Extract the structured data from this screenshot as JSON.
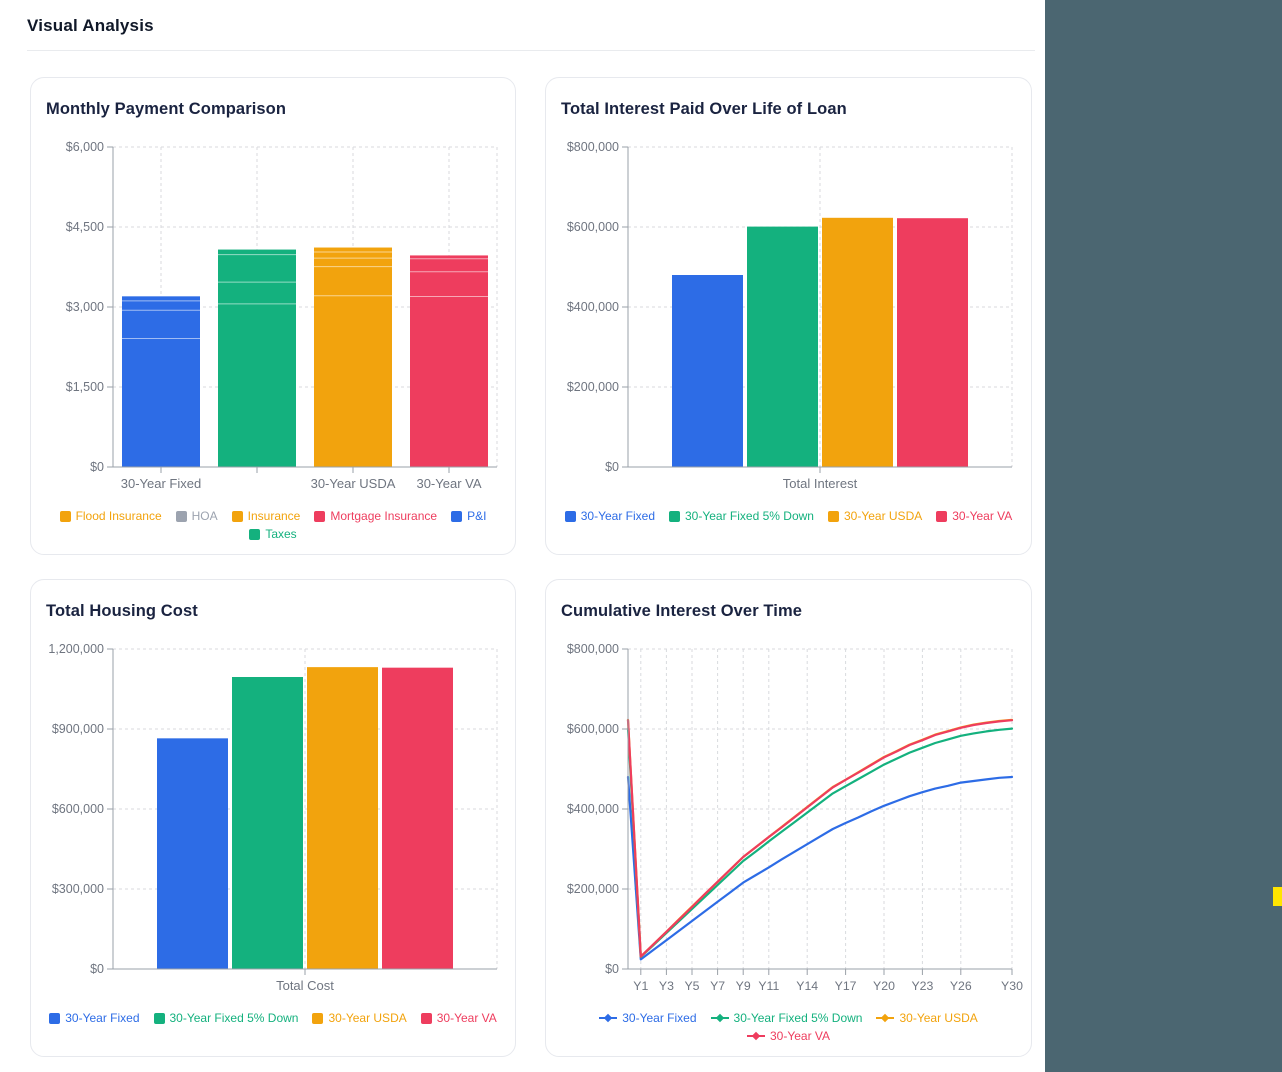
{
  "page": {
    "title": "Visual Analysis"
  },
  "panel": {
    "background": "#4b6671",
    "indicator_color": "#ffe500"
  },
  "colors": {
    "blue": "#2d6ce6",
    "green": "#14b17e",
    "orange": "#f2a30d",
    "red": "#ee3d5e",
    "gray": "#9ca3af"
  },
  "chart_data": [
    {
      "id": "monthly-payment-comparison",
      "type": "bar",
      "variant": "stacked",
      "title": "Monthly Payment Comparison",
      "y_ticks": [
        "$6,000",
        "$4,500",
        "$3,000",
        "$1,500",
        "$0"
      ],
      "y_max": 6000,
      "categories": [
        "30-Year Fixed",
        "",
        "30-Year USDA",
        "30-Year VA"
      ],
      "bars": [
        {
          "category": "30-Year Fixed",
          "color": "#2d6ce6",
          "total": 3200,
          "segments": [
            2410,
            530,
            175,
            85
          ]
        },
        {
          "category": "",
          "color": "#14b17e",
          "total": 4077,
          "segments": [
            3058,
            409,
            514,
            96
          ]
        },
        {
          "category": "30-Year USDA",
          "color": "#f2a30d",
          "total": 4115,
          "segments": [
            3212,
            544,
            161,
            115,
            83
          ]
        },
        {
          "category": "30-Year VA",
          "color": "#ee3d5e",
          "total": 3967,
          "segments": [
            3198,
            462,
            244,
            63
          ]
        }
      ],
      "legend": [
        {
          "label": "Flood Insurance",
          "color": "#f2a30d"
        },
        {
          "label": "HOA",
          "color": "#9ca3af"
        },
        {
          "label": "Insurance",
          "color": "#f2a30d"
        },
        {
          "label": "Mortgage Insurance",
          "color": "#ee3d5e"
        },
        {
          "label": "P&I",
          "color": "#2d6ce6"
        },
        {
          "label": "Taxes",
          "color": "#14b17e"
        }
      ],
      "legend_marker": "square"
    },
    {
      "id": "total-interest-paid",
      "type": "bar",
      "variant": "grouped",
      "title": "Total Interest Paid Over Life of Loan",
      "y_ticks": [
        "$800,000",
        "$600,000",
        "$400,000",
        "$200,000",
        "$0"
      ],
      "y_max": 800000,
      "categories": [
        "Total Interest"
      ],
      "series": [
        {
          "name": "30-Year Fixed",
          "color": "#2d6ce6",
          "values": [
            480000
          ]
        },
        {
          "name": "30-Year Fixed 5% Down",
          "color": "#14b17e",
          "values": [
            601000
          ]
        },
        {
          "name": "30-Year USDA",
          "color": "#f2a30d",
          "values": [
            623000
          ]
        },
        {
          "name": "30-Year VA",
          "color": "#ee3d5e",
          "values": [
            622000
          ]
        }
      ],
      "legend_marker": "square"
    },
    {
      "id": "total-housing-cost",
      "type": "bar",
      "variant": "grouped",
      "title": "Total Housing Cost",
      "y_ticks": [
        "1,200,000",
        "$900,000",
        "$600,000",
        "$300,000",
        "$0"
      ],
      "y_max": 1200000,
      "categories": [
        "Total Cost"
      ],
      "series": [
        {
          "name": "30-Year Fixed",
          "color": "#2d6ce6",
          "values": [
            865000
          ]
        },
        {
          "name": "30-Year Fixed 5% Down",
          "color": "#14b17e",
          "values": [
            1095000
          ]
        },
        {
          "name": "30-Year USDA",
          "color": "#f2a30d",
          "values": [
            1132000
          ]
        },
        {
          "name": "30-Year VA",
          "color": "#ee3d5e",
          "values": [
            1130000
          ]
        }
      ],
      "legend_marker": "square"
    },
    {
      "id": "cumulative-interest-over-time",
      "type": "line",
      "title": "Cumulative Interest Over Time",
      "y_ticks": [
        "$800,000",
        "$600,000",
        "$400,000",
        "$200,000",
        "$0"
      ],
      "y_max": 800000,
      "x_tick_labels": [
        "Y1",
        "Y3",
        "Y5",
        "Y7",
        "Y9",
        "Y11",
        "Y14",
        "Y17",
        "Y20",
        "Y23",
        "Y26",
        "Y30"
      ],
      "x_tick_indices": [
        1,
        3,
        5,
        7,
        9,
        11,
        14,
        17,
        20,
        23,
        26,
        30
      ],
      "series": [
        {
          "name": "30-Year Fixed",
          "color": "#2d6ce6",
          "values": [
            480000,
            24000,
            48000,
            72000,
            96000,
            120000,
            144000,
            168000,
            192000,
            216000,
            235000,
            254000,
            274000,
            293000,
            312000,
            331000,
            350000,
            365000,
            379000,
            394000,
            408000,
            420000,
            432000,
            442000,
            451000,
            458000,
            466000,
            470000,
            474000,
            478000,
            480000
          ]
        },
        {
          "name": "30-Year Fixed 5% Down",
          "color": "#14b17e",
          "values": [
            601000,
            30000,
            60000,
            90000,
            120000,
            150000,
            180000,
            210000,
            240000,
            270000,
            294000,
            319000,
            343000,
            367000,
            391000,
            415000,
            439000,
            457000,
            475000,
            493000,
            511000,
            526000,
            541000,
            553000,
            565000,
            574000,
            583000,
            589000,
            594000,
            598000,
            601000
          ]
        },
        {
          "name": "30-Year USDA",
          "color": "#f2a30d",
          "values": [
            623000,
            31000,
            62000,
            93000,
            125000,
            156000,
            187000,
            218000,
            249000,
            280000,
            305000,
            330000,
            355000,
            380000,
            405000,
            430000,
            455000,
            473000,
            492000,
            511000,
            530000,
            545000,
            561000,
            573000,
            586000,
            595000,
            604000,
            611000,
            616000,
            620000,
            623000
          ]
        },
        {
          "name": "30-Year VA",
          "color": "#ee3d5e",
          "values": [
            622000,
            31000,
            62000,
            93000,
            124000,
            155000,
            187000,
            218000,
            249000,
            280000,
            305000,
            330000,
            354000,
            379000,
            404000,
            429000,
            454000,
            473000,
            491000,
            510000,
            529000,
            544000,
            560000,
            572000,
            585000,
            594000,
            603000,
            610000,
            615000,
            619000,
            622000
          ]
        }
      ],
      "legend_marker": "line-diamond"
    }
  ]
}
